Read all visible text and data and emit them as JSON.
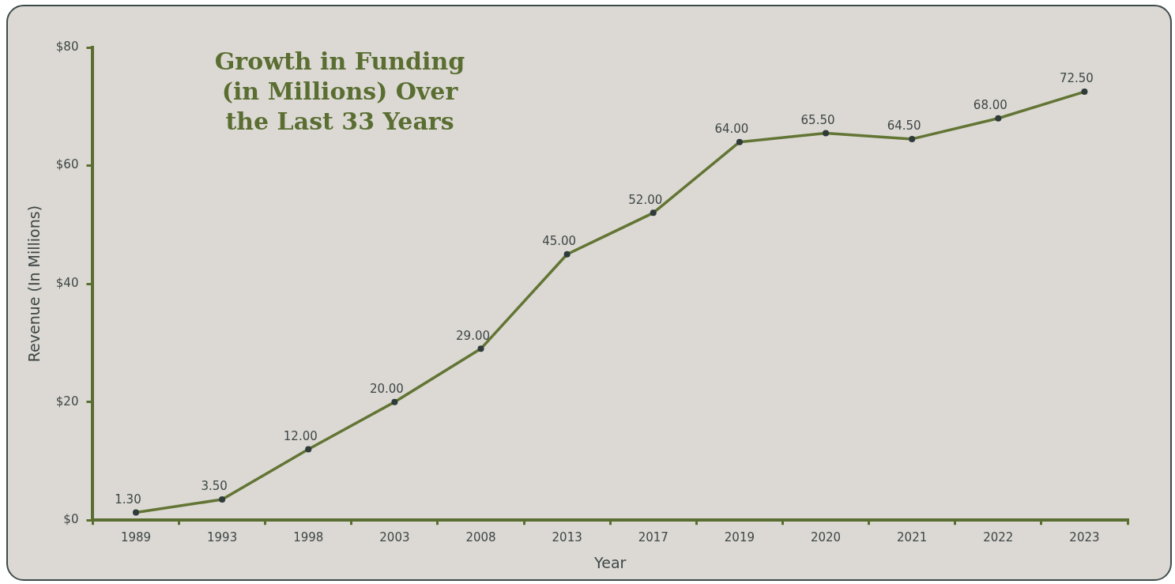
{
  "chart_data": {
    "type": "line",
    "title": "Growth in Funding (in Millions) Over the Last 33 Years",
    "xlabel": "Year",
    "ylabel": "Revenue (In Millions)",
    "categories": [
      "1989",
      "1993",
      "1998",
      "2003",
      "2008",
      "2013",
      "2017",
      "2019",
      "2020",
      "2021",
      "2022",
      "2023"
    ],
    "series": [
      {
        "color": "#627534",
        "values": [
          1.3,
          3.5,
          12,
          20,
          29,
          45,
          52,
          64,
          65.5,
          64.5,
          68,
          72.5
        ],
        "value_labels": [
          "1.30",
          "3.50",
          "12.00",
          "20.00",
          "29.00",
          "45.00",
          "52.00",
          "64.00",
          "65.50",
          "64.50",
          "68.00",
          "72.50"
        ]
      }
    ],
    "ylim": [
      0,
      80
    ],
    "yticks": [
      {
        "value": 0,
        "label": "$0"
      },
      {
        "value": 20,
        "label": "$20"
      },
      {
        "value": 40,
        "label": "$40"
      },
      {
        "value": 60,
        "label": "$60"
      },
      {
        "value": 80,
        "label": "$80"
      }
    ],
    "grid": false,
    "legend": false,
    "marker": "circle",
    "line_style": "solid"
  }
}
